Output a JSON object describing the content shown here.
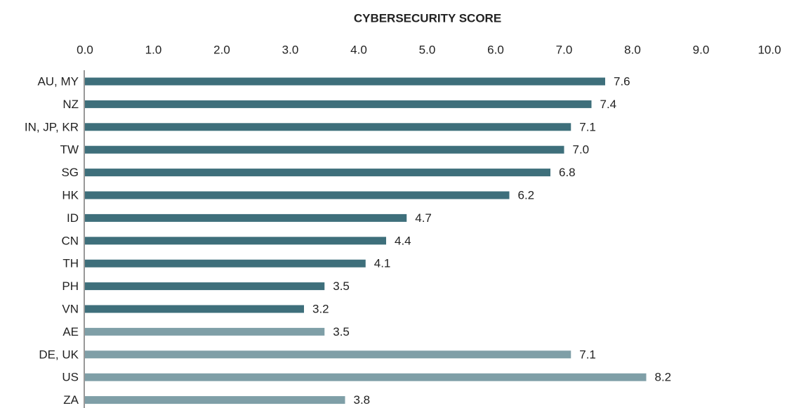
{
  "chart_data": {
    "type": "bar",
    "orientation": "horizontal",
    "title": "CYBERSECURITY SCORE",
    "categories": [
      "AU, MY",
      "NZ",
      "IN, JP, KR",
      "TW",
      "SG",
      "HK",
      "ID",
      "CN",
      "TH",
      "PH",
      "VN",
      "AE",
      "DE, UK",
      "US",
      "ZA"
    ],
    "values": [
      7.6,
      7.4,
      7.1,
      7.0,
      6.8,
      6.2,
      4.7,
      4.4,
      4.1,
      3.5,
      3.2,
      3.5,
      7.1,
      8.2,
      3.8
    ],
    "value_labels": [
      "7.6",
      "7.4",
      "7.1",
      "7.0",
      "6.8",
      "6.2",
      "4.7",
      "4.4",
      "4.1",
      "3.5",
      "3.2",
      "3.5",
      "7.1",
      "8.2",
      "3.8"
    ],
    "colors": [
      "#3e6f7b",
      "#3e6f7b",
      "#3e6f7b",
      "#3e6f7b",
      "#3e6f7b",
      "#3e6f7b",
      "#3e6f7b",
      "#3e6f7b",
      "#3e6f7b",
      "#3e6f7b",
      "#3e6f7b",
      "#7f9fa7",
      "#7f9fa7",
      "#7f9fa7",
      "#7f9fa7"
    ],
    "xlim": [
      0,
      10
    ],
    "xticks": [
      {
        "value": 0,
        "label": "0.0"
      },
      {
        "value": 1,
        "label": "1.0"
      },
      {
        "value": 2,
        "label": "2.0"
      },
      {
        "value": 3,
        "label": "3.0"
      },
      {
        "value": 4,
        "label": "4.0"
      },
      {
        "value": 5,
        "label": "5.0"
      },
      {
        "value": 6,
        "label": "6.0"
      },
      {
        "value": 7,
        "label": "7.0"
      },
      {
        "value": 8,
        "label": "8.0"
      },
      {
        "value": 9,
        "label": "9.0"
      },
      {
        "value": 10,
        "label": "10.0"
      }
    ],
    "grid": false
  }
}
